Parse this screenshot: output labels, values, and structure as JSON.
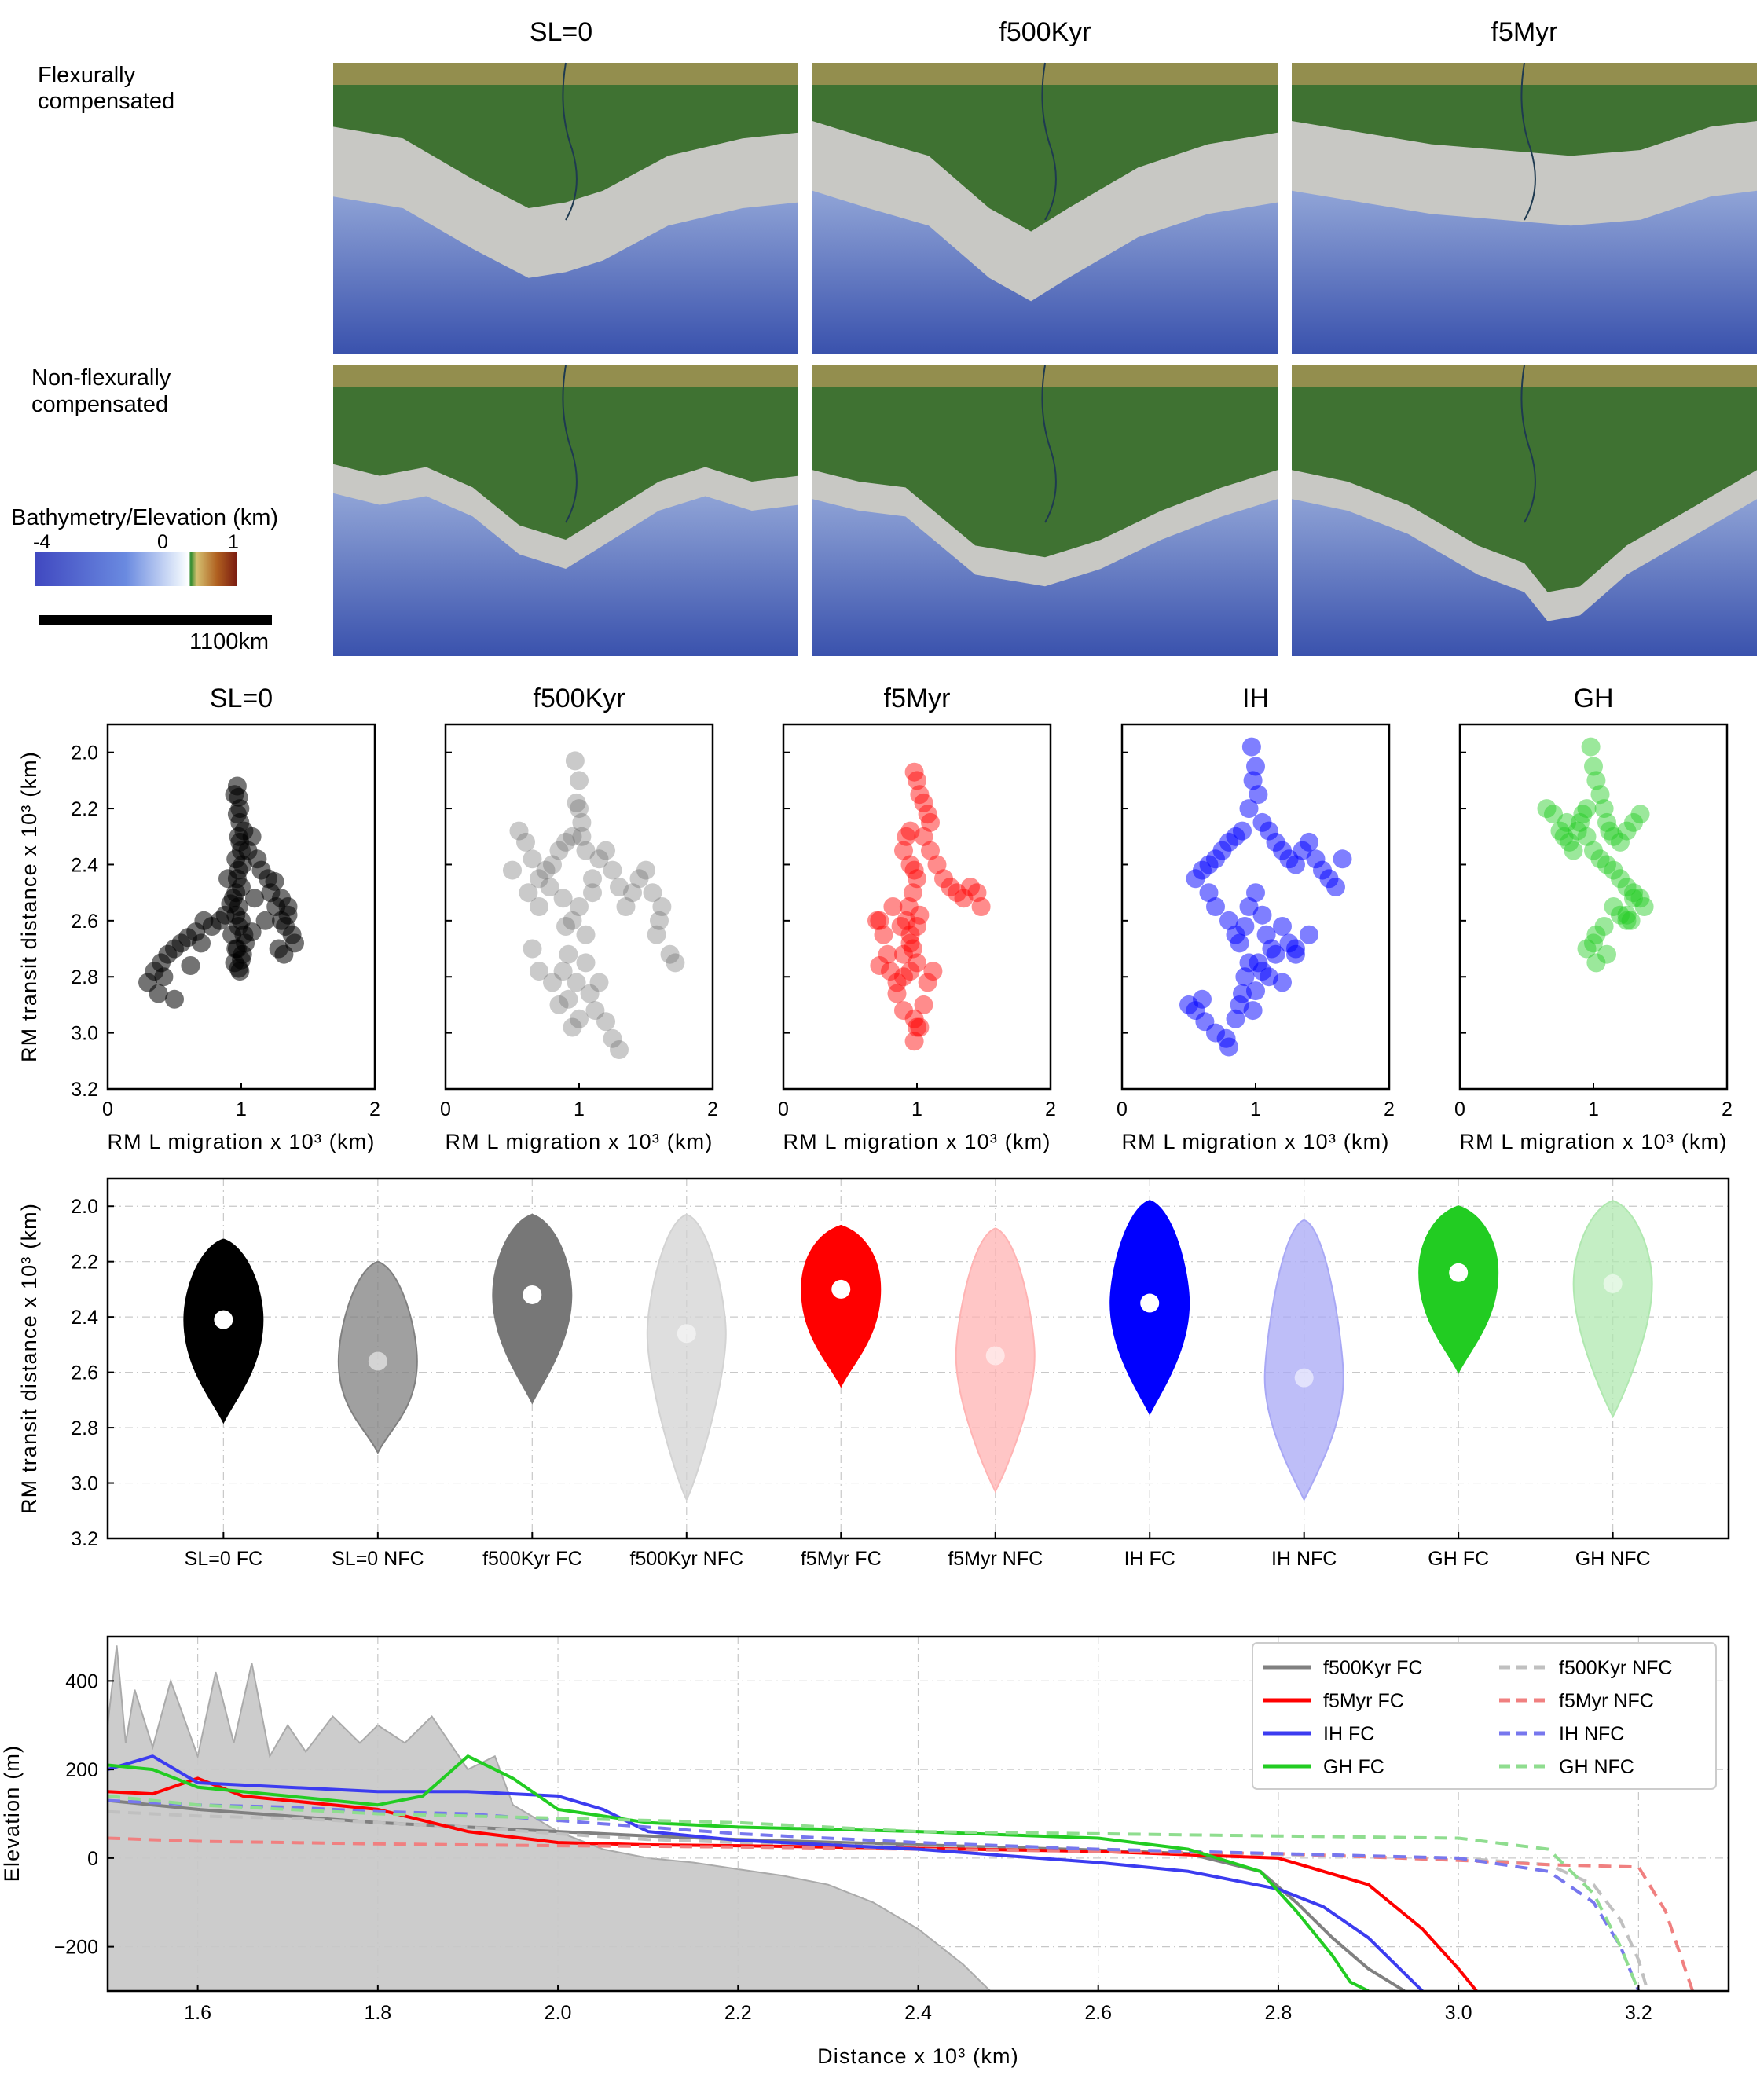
{
  "maps": {
    "col_titles": [
      "SL=0",
      "f500Kyr",
      "f5Myr"
    ],
    "row_labels": [
      [
        "Flexurally",
        "compensated"
      ],
      [
        "Non-flexurally",
        "compensated"
      ]
    ],
    "colorbar": {
      "title": "Bathymetry/Elevation (km)",
      "ticks": [
        "-4",
        "0",
        "1"
      ]
    },
    "scalebar": "1100km",
    "colors": {
      "deep": "#3d55b0",
      "shelf": "#c8c8c4",
      "land": "#3f7232",
      "highland": "#b89a5a"
    }
  },
  "scatter": {
    "titles": [
      "SL=0",
      "f500Kyr",
      "f5Myr",
      "IH",
      "GH"
    ],
    "colors": [
      "#000000",
      "#666666",
      "#ff0000",
      "#0000ff",
      "#22cc22"
    ],
    "xlabel": "RM L migration x 10³ (km)",
    "ylabel": "RM transit distance x 10³ (km)",
    "xticks": [
      "0",
      "1",
      "2"
    ],
    "yticks": [
      "2.0",
      "2.2",
      "2.4",
      "2.6",
      "2.8",
      "3.0",
      "3.2"
    ]
  },
  "violin": {
    "ylabel": "RM transit distance x 10³ (km)",
    "yticks": [
      "2.0",
      "2.2",
      "2.4",
      "2.6",
      "2.8",
      "3.0",
      "3.2"
    ],
    "categories": [
      "SL=0 FC",
      "SL=0 NFC",
      "f500Kyr FC",
      "f500Kyr NFC",
      "f5Myr FC",
      "f5Myr NFC",
      "IH FC",
      "IH NFC",
      "GH FC",
      "GH NFC"
    ]
  },
  "profile": {
    "xlabel": "Distance x 10³ (km)",
    "ylabel": "Elevation (m)",
    "xticks": [
      "1.6",
      "1.8",
      "2.0",
      "2.2",
      "2.4",
      "2.6",
      "2.8",
      "3.0",
      "3.2"
    ],
    "yticks": [
      "400",
      "200",
      "0",
      "−200"
    ],
    "legend": [
      "f500Kyr FC",
      "f500Kyr NFC",
      "f5Myr FC",
      "f5Myr NFC",
      "IH FC",
      "IH NFC",
      "GH FC",
      "GH NFC"
    ]
  },
  "chart_data": [
    {
      "type": "scatter",
      "title": "SL=0",
      "xlabel": "RM L migration x 10³ (km)",
      "ylabel": "RM transit distance x 10³ (km)",
      "xlim": [
        0,
        2
      ],
      "ylim": [
        3.2,
        1.9
      ],
      "color": "#000000",
      "x": [
        0.97,
        0.98,
        0.99,
        0.99,
        0.98,
        1.0,
        1.01,
        0.97,
        0.96,
        0.98,
        1.0,
        1.02,
        0.97,
        0.95,
        0.99,
        1.01,
        1.03,
        0.98,
        0.96,
        0.94,
        1.0,
        0.98,
        0.96,
        0.99,
        1.02,
        0.97,
        0.93,
        0.96,
        1.0,
        0.98,
        1.05,
        1.08,
        1.12,
        1.15,
        1.2,
        1.22,
        1.26,
        1.3,
        1.33,
        1.35,
        1.38,
        1.4,
        1.32,
        1.28,
        0.92,
        0.88,
        0.84,
        0.78,
        0.72,
        0.66,
        0.6,
        0.55,
        0.5,
        0.45,
        0.4,
        0.35,
        0.3,
        0.42,
        0.38,
        0.5,
        0.62,
        0.7,
        1.25,
        1.3,
        1.35,
        0.95,
        0.9,
        1.1,
        1.18,
        1.08
      ],
      "y": [
        2.12,
        2.16,
        2.2,
        2.25,
        2.3,
        2.35,
        2.4,
        2.45,
        2.5,
        2.55,
        2.6,
        2.65,
        2.7,
        2.75,
        2.78,
        2.72,
        2.68,
        2.62,
        2.58,
        2.52,
        2.48,
        2.42,
        2.38,
        2.32,
        2.28,
        2.22,
        2.65,
        2.7,
        2.74,
        2.77,
        2.35,
        2.3,
        2.38,
        2.42,
        2.45,
        2.5,
        2.55,
        2.6,
        2.62,
        2.58,
        2.65,
        2.68,
        2.72,
        2.7,
        2.54,
        2.58,
        2.6,
        2.62,
        2.6,
        2.64,
        2.66,
        2.68,
        2.7,
        2.72,
        2.75,
        2.78,
        2.82,
        2.8,
        2.86,
        2.88,
        2.76,
        2.68,
        2.46,
        2.52,
        2.55,
        2.15,
        2.45,
        2.52,
        2.6,
        2.64
      ],
      "alpha": 0.55
    },
    {
      "type": "scatter",
      "title": "f500Kyr",
      "xlim": [
        0,
        2
      ],
      "ylim": [
        3.2,
        1.9
      ],
      "color": "#666666",
      "x": [
        0.97,
        1.0,
        0.98,
        1.02,
        0.95,
        1.05,
        0.9,
        0.85,
        0.8,
        0.75,
        0.7,
        0.65,
        0.6,
        0.55,
        0.5,
        0.62,
        0.7,
        0.78,
        0.88,
        1.1,
        1.15,
        1.2,
        1.25,
        1.3,
        1.35,
        1.4,
        1.45,
        1.5,
        1.55,
        1.62,
        1.68,
        1.72,
        1.58,
        1.6,
        1.1,
        1.0,
        0.95,
        1.05,
        0.92,
        0.88,
        0.98,
        1.08,
        1.12,
        1.0,
        0.95,
        0.92,
        1.05,
        1.15,
        0.85,
        0.8,
        0.7,
        0.65,
        1.2,
        1.25,
        1.3,
        0.9,
        1.0,
        1.02
      ],
      "y": [
        2.03,
        2.1,
        2.18,
        2.25,
        2.3,
        2.35,
        2.32,
        2.35,
        2.4,
        2.42,
        2.45,
        2.38,
        2.32,
        2.28,
        2.42,
        2.5,
        2.55,
        2.48,
        2.52,
        2.45,
        2.38,
        2.35,
        2.42,
        2.48,
        2.55,
        2.5,
        2.45,
        2.42,
        2.5,
        2.55,
        2.72,
        2.75,
        2.65,
        2.6,
        2.5,
        2.55,
        2.6,
        2.65,
        2.72,
        2.78,
        2.82,
        2.86,
        2.92,
        2.95,
        2.98,
        2.88,
        2.75,
        2.82,
        2.9,
        2.82,
        2.78,
        2.7,
        2.96,
        3.02,
        3.06,
        2.62,
        2.2,
        2.3
      ],
      "alpha": 0.35
    },
    {
      "type": "scatter",
      "title": "f5Myr",
      "xlim": [
        0,
        2
      ],
      "ylim": [
        3.2,
        1.9
      ],
      "color": "#ff0000",
      "x": [
        0.98,
        1.0,
        1.02,
        1.05,
        1.08,
        1.1,
        0.95,
        0.92,
        0.9,
        0.95,
        0.98,
        1.0,
        0.97,
        0.94,
        0.92,
        0.95,
        0.97,
        1.0,
        1.02,
        1.05,
        1.1,
        1.15,
        1.2,
        1.25,
        1.3,
        1.35,
        1.4,
        1.45,
        1.48,
        1.0,
        0.95,
        0.9,
        0.85,
        0.8,
        0.78,
        0.75,
        0.72,
        0.7,
        0.72,
        0.85,
        0.9,
        0.98,
        1.02,
        1.05,
        1.08,
        1.12,
        0.95,
        0.9,
        0.98,
        1.0,
        0.82,
        0.88
      ],
      "y": [
        2.07,
        2.1,
        2.15,
        2.18,
        2.22,
        2.25,
        2.28,
        2.3,
        2.35,
        2.4,
        2.42,
        2.45,
        2.5,
        2.55,
        2.6,
        2.65,
        2.7,
        2.62,
        2.58,
        2.3,
        2.35,
        2.4,
        2.45,
        2.48,
        2.5,
        2.52,
        2.48,
        2.5,
        2.55,
        2.75,
        2.78,
        2.8,
        2.82,
        2.78,
        2.72,
        2.65,
        2.6,
        2.6,
        2.76,
        2.86,
        2.92,
        2.95,
        2.98,
        2.9,
        2.82,
        2.78,
        2.68,
        2.72,
        3.03,
        2.98,
        2.55,
        2.62
      ],
      "alpha": 0.45
    },
    {
      "type": "scatter",
      "title": "IH",
      "xlim": [
        0,
        2
      ],
      "ylim": [
        3.2,
        1.9
      ],
      "color": "#0000ff",
      "x": [
        0.97,
        1.0,
        0.98,
        1.02,
        0.95,
        1.05,
        0.9,
        0.85,
        0.8,
        0.75,
        0.7,
        0.65,
        0.6,
        0.55,
        1.1,
        1.15,
        1.2,
        1.25,
        1.3,
        1.35,
        1.4,
        1.45,
        1.5,
        1.55,
        1.6,
        1.65,
        1.0,
        0.95,
        1.05,
        0.92,
        0.88,
        1.08,
        1.12,
        0.95,
        0.92,
        1.05,
        1.15,
        0.85,
        0.8,
        0.7,
        0.65,
        1.2,
        1.25,
        1.3,
        0.9,
        0.98,
        0.6,
        0.55,
        0.62,
        0.7,
        0.78,
        0.8,
        0.85,
        0.88,
        1.0,
        1.02,
        1.1,
        1.2,
        1.3,
        1.4,
        0.5
      ],
      "y": [
        1.98,
        2.05,
        2.1,
        2.15,
        2.2,
        2.25,
        2.28,
        2.3,
        2.32,
        2.35,
        2.38,
        2.4,
        2.42,
        2.45,
        2.28,
        2.32,
        2.35,
        2.38,
        2.4,
        2.35,
        2.32,
        2.38,
        2.42,
        2.45,
        2.48,
        2.38,
        2.5,
        2.55,
        2.58,
        2.62,
        2.68,
        2.65,
        2.7,
        2.75,
        2.8,
        2.78,
        2.72,
        2.65,
        2.6,
        2.55,
        2.5,
        2.62,
        2.68,
        2.72,
        2.86,
        2.92,
        2.88,
        2.92,
        2.96,
        3.0,
        3.02,
        3.05,
        2.95,
        2.9,
        2.85,
        2.75,
        2.8,
        2.82,
        2.7,
        2.65,
        2.9
      ],
      "alpha": 0.5
    },
    {
      "type": "scatter",
      "title": "GH",
      "xlim": [
        0,
        2
      ],
      "ylim": [
        3.2,
        1.9
      ],
      "color": "#22cc22",
      "x": [
        0.98,
        1.0,
        1.02,
        1.05,
        0.95,
        0.92,
        0.9,
        0.88,
        1.08,
        1.1,
        1.12,
        1.15,
        1.2,
        1.25,
        1.3,
        1.35,
        0.8,
        0.75,
        0.7,
        0.65,
        0.82,
        0.85,
        0.95,
        1.0,
        1.05,
        1.1,
        1.15,
        1.2,
        1.25,
        1.3,
        1.35,
        1.38,
        1.25,
        1.28,
        1.15,
        1.2,
        1.08,
        1.02,
        1.0,
        0.95,
        1.1,
        1.25,
        1.3,
        0.78,
        1.02
      ],
      "y": [
        1.98,
        2.05,
        2.1,
        2.15,
        2.2,
        2.22,
        2.25,
        2.28,
        2.2,
        2.25,
        2.28,
        2.3,
        2.32,
        2.28,
        2.25,
        2.22,
        2.25,
        2.28,
        2.22,
        2.2,
        2.32,
        2.35,
        2.3,
        2.35,
        2.38,
        2.4,
        2.42,
        2.45,
        2.48,
        2.5,
        2.52,
        2.55,
        2.58,
        2.6,
        2.55,
        2.58,
        2.62,
        2.65,
        2.68,
        2.7,
        2.72,
        2.6,
        2.52,
        2.3,
        2.75
      ],
      "alpha": 0.45
    },
    {
      "type": "violin",
      "ylabel": "RM transit distance x 10³ (km)",
      "ylim": [
        3.2,
        1.9
      ],
      "categories": [
        "SL=0 FC",
        "SL=0 NFC",
        "f500Kyr FC",
        "f500Kyr NFC",
        "f5Myr FC",
        "f5Myr NFC",
        "IH FC",
        "IH NFC",
        "GH FC",
        "GH NFC"
      ],
      "medians": [
        2.41,
        2.56,
        2.32,
        2.46,
        2.3,
        2.54,
        2.35,
        2.62,
        2.24,
        2.28
      ],
      "ranges": [
        [
          2.12,
          2.78
        ],
        [
          2.2,
          2.89
        ],
        [
          2.03,
          2.71
        ],
        [
          2.03,
          3.06
        ],
        [
          2.07,
          2.65
        ],
        [
          2.08,
          3.03
        ],
        [
          1.98,
          2.75
        ],
        [
          2.05,
          3.06
        ],
        [
          2.0,
          2.6
        ],
        [
          1.98,
          2.76
        ]
      ],
      "colors": [
        "#000000",
        "#808080",
        "#777777",
        "#d3d3d3",
        "#ff0000",
        "#ffb3b3",
        "#0000ff",
        "#a8a8f5",
        "#22cc22",
        "#b0e8b0"
      ]
    },
    {
      "type": "line",
      "xlabel": "Distance x 10³ (km)",
      "ylabel": "Elevation (m)",
      "xlim": [
        1.5,
        3.3
      ],
      "ylim": [
        -300,
        500
      ],
      "series": [
        {
          "name": "f500Kyr FC",
          "color": "#808080",
          "dash": "solid",
          "x": [
            1.5,
            1.55,
            1.6,
            1.7,
            1.8,
            1.9,
            2.0,
            2.1,
            2.2,
            2.4,
            2.6,
            2.7,
            2.78,
            2.82,
            2.86,
            2.9,
            2.94
          ],
          "y": [
            130,
            120,
            110,
            95,
            80,
            70,
            60,
            50,
            42,
            30,
            18,
            10,
            -30,
            -100,
            -180,
            -250,
            -300
          ]
        },
        {
          "name": "f500Kyr NFC",
          "color": "#c0c0c0",
          "dash": "dash",
          "x": [
            1.5,
            1.6,
            1.7,
            1.8,
            1.9,
            2.0,
            2.1,
            2.2,
            2.4,
            2.6,
            2.8,
            3.0,
            3.1,
            3.15,
            3.18,
            3.2,
            3.21
          ],
          "y": [
            105,
            95,
            90,
            80,
            70,
            55,
            42,
            35,
            25,
            15,
            8,
            0,
            -15,
            -60,
            -140,
            -230,
            -300
          ]
        },
        {
          "name": "f5Myr FC",
          "color": "#ff0000",
          "dash": "solid",
          "x": [
            1.5,
            1.55,
            1.6,
            1.65,
            1.7,
            1.8,
            1.9,
            2.0,
            2.1,
            2.2,
            2.4,
            2.6,
            2.8,
            2.9,
            2.96,
            3.0,
            3.02
          ],
          "y": [
            150,
            145,
            180,
            140,
            130,
            110,
            60,
            35,
            30,
            28,
            22,
            15,
            0,
            -60,
            -160,
            -250,
            -300
          ]
        },
        {
          "name": "f5Myr NFC",
          "color": "#f08080",
          "dash": "dash",
          "x": [
            1.5,
            1.6,
            1.7,
            1.8,
            1.9,
            2.0,
            2.2,
            2.4,
            2.6,
            2.8,
            3.0,
            3.1,
            3.2,
            3.23,
            3.25,
            3.26
          ],
          "y": [
            45,
            38,
            35,
            32,
            30,
            28,
            25,
            20,
            15,
            10,
            -5,
            -15,
            -20,
            -120,
            -240,
            -300
          ]
        },
        {
          "name": "IH FC",
          "color": "#3c3cf0",
          "dash": "solid",
          "x": [
            1.5,
            1.55,
            1.6,
            1.7,
            1.8,
            1.9,
            2.0,
            2.05,
            2.1,
            2.2,
            2.4,
            2.6,
            2.7,
            2.8,
            2.85,
            2.9,
            2.93,
            2.96
          ],
          "y": [
            200,
            230,
            170,
            160,
            150,
            150,
            140,
            110,
            60,
            40,
            20,
            -10,
            -30,
            -70,
            -110,
            -180,
            -240,
            -300
          ]
        },
        {
          "name": "IH NFC",
          "color": "#7777ee",
          "dash": "dash",
          "x": [
            1.5,
            1.6,
            1.7,
            1.8,
            1.9,
            2.0,
            2.2,
            2.4,
            2.6,
            2.8,
            3.0,
            3.1,
            3.15,
            3.18,
            3.2
          ],
          "y": [
            130,
            120,
            115,
            105,
            100,
            85,
            55,
            35,
            20,
            10,
            0,
            -30,
            -100,
            -200,
            -300
          ]
        },
        {
          "name": "GH FC",
          "color": "#22cc22",
          "dash": "solid",
          "x": [
            1.5,
            1.55,
            1.6,
            1.7,
            1.8,
            1.85,
            1.9,
            1.95,
            2.0,
            2.1,
            2.2,
            2.4,
            2.6,
            2.7,
            2.78,
            2.82,
            2.86,
            2.88,
            2.9
          ],
          "y": [
            210,
            200,
            160,
            140,
            120,
            140,
            230,
            180,
            110,
            80,
            70,
            60,
            45,
            20,
            -30,
            -120,
            -220,
            -280,
            -300
          ]
        },
        {
          "name": "GH NFC",
          "color": "#8fdd8f",
          "dash": "dash",
          "x": [
            1.5,
            1.6,
            1.7,
            1.8,
            1.9,
            2.0,
            2.2,
            2.4,
            2.6,
            2.8,
            3.0,
            3.1,
            3.15,
            3.18,
            3.2
          ],
          "y": [
            140,
            120,
            110,
            100,
            95,
            90,
            80,
            60,
            55,
            50,
            45,
            20,
            -80,
            -200,
            -300
          ]
        }
      ]
    }
  ]
}
